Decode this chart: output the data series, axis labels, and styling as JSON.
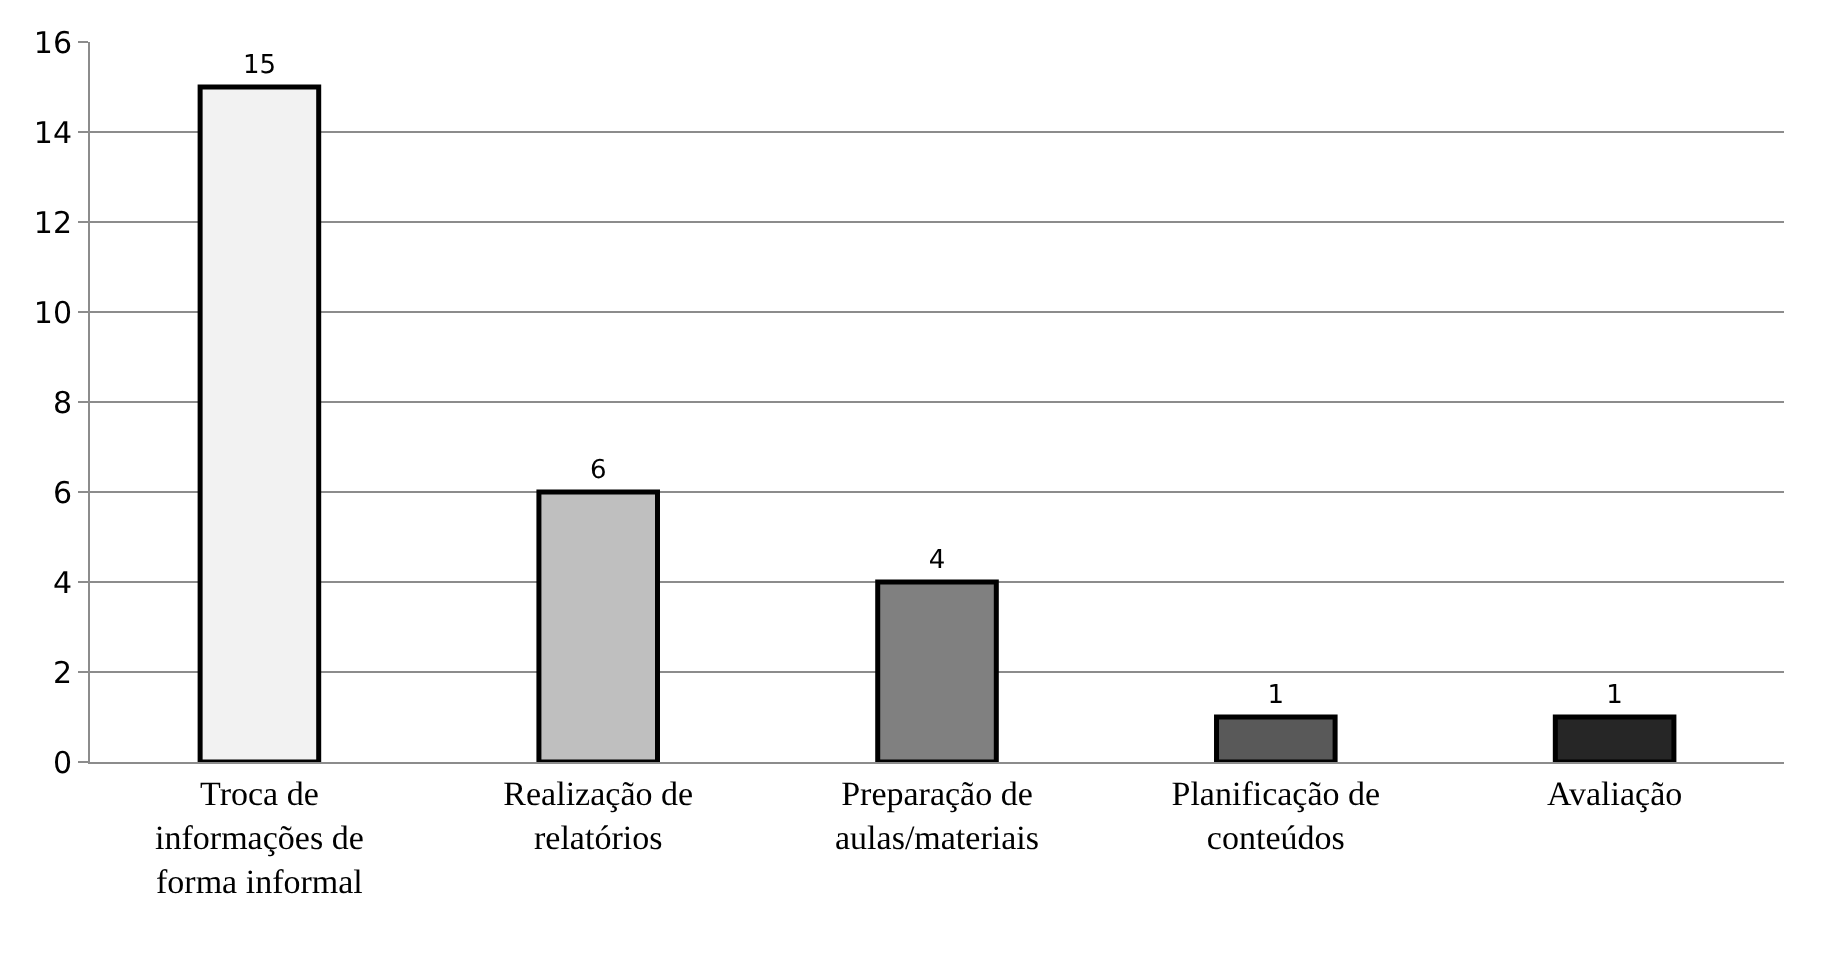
{
  "chart_data": {
    "type": "bar",
    "categories": [
      "Troca de informações de forma informal",
      "Realização de relatórios",
      "Preparação de aulas/materiais",
      "Planificação de conteúdos",
      "Avaliação"
    ],
    "values": [
      15,
      6,
      4,
      1,
      1
    ],
    "colors": [
      "#f2f2f2",
      "#bfbfbf",
      "#808080",
      "#595959",
      "#262626"
    ],
    "ylim": [
      0,
      16
    ],
    "yticks": [
      0,
      2,
      4,
      6,
      8,
      10,
      12,
      14,
      16
    ],
    "grid": "y",
    "data_labels": true
  }
}
